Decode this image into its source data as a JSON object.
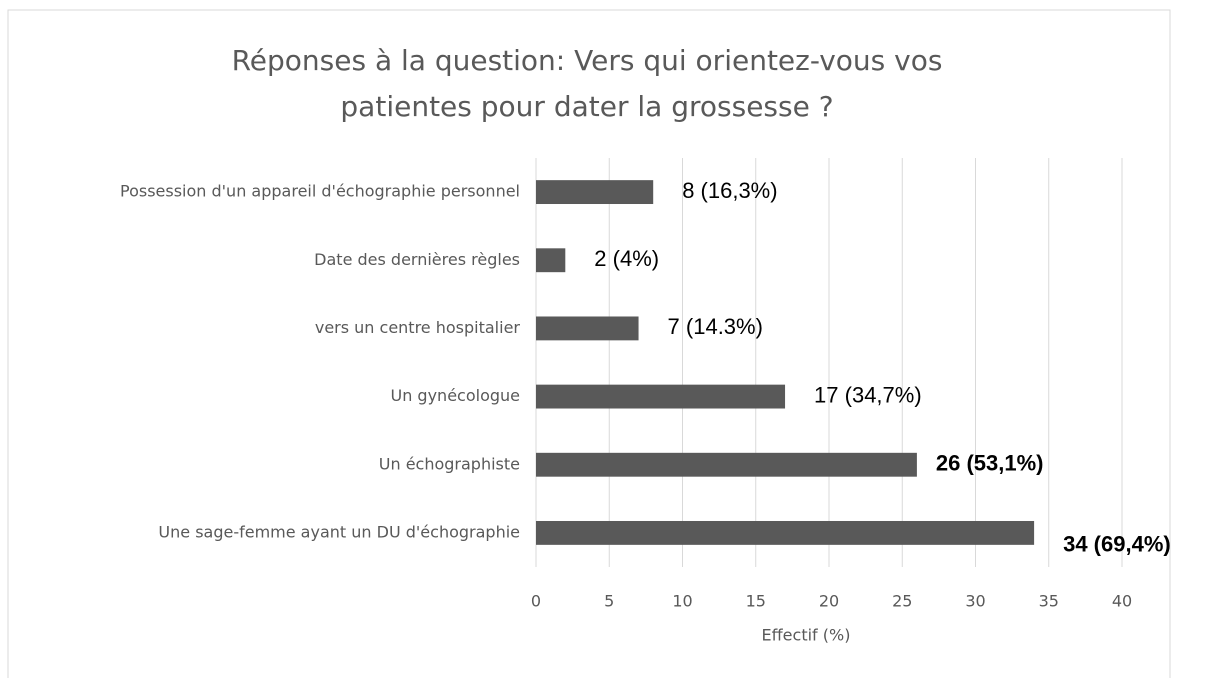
{
  "chart_data": {
    "type": "barh",
    "title": "Réponses à la question: Vers qui orientez-vous vos patientes pour dater la grossesse ?",
    "xlabel": "Effectif (%)",
    "categories": [
      "Possession d'un appareil d'échographie personnel",
      "Date des dernières règles",
      "vers un centre hospitalier",
      "Un gynécologue",
      "Un échographiste",
      "Une sage-femme ayant un DU d'échographie"
    ],
    "values": [
      8,
      2,
      7,
      17,
      26,
      34
    ],
    "value_labels": [
      "8 (16,3%)",
      "2 (4%)",
      "7 (14.3%)",
      "17 (34,7%)",
      "26 (53,1%)",
      "34 (69,4%)"
    ],
    "value_label_bold": [
      false,
      false,
      false,
      false,
      true,
      true
    ],
    "color": "#595959",
    "xlim": [
      0,
      40
    ],
    "xticks": [
      0,
      5,
      10,
      15,
      20,
      25,
      30,
      35,
      40
    ],
    "grid": true
  }
}
